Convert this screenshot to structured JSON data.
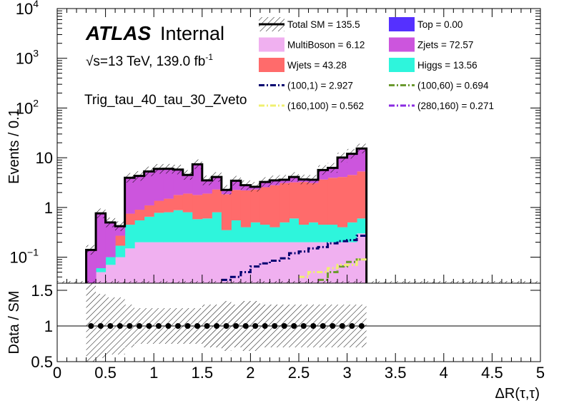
{
  "chart_data": {
    "type": "bar",
    "title": "",
    "atlas_label": "ATLAS",
    "atlas_status": "Internal",
    "lumi_label": "√s=13 TeV, 139.0 fb",
    "lumi_sup": "-1",
    "region_label": "Trig_tau_40_tau_30_Zveto",
    "xlabel": "ΔR(τ,τ)",
    "ylabel_top": "Events / 0.1",
    "ylabel_bottom": "Data / SM",
    "xlim": [
      0,
      5
    ],
    "ylim_top": [
      0.03,
      10000
    ],
    "ylim_bottom": [
      0.5,
      1.6
    ],
    "x_tick_labels": [
      "0",
      "0.5",
      "1",
      "1.5",
      "2",
      "2.5",
      "3",
      "3.5",
      "4",
      "4.5",
      "5"
    ],
    "x_tick_values": [
      0,
      0.5,
      1,
      1.5,
      2,
      2.5,
      3,
      3.5,
      4,
      4.5,
      5
    ],
    "y_top_tick_values": [
      0.1,
      1,
      10,
      100,
      1000,
      10000
    ],
    "y_top_tick_labels": [
      "10",
      "1",
      "10",
      "10",
      "10",
      "10"
    ],
    "y_top_tick_sups": [
      "−1",
      "",
      "",
      "2",
      "3",
      "4"
    ],
    "y_bottom_tick_values": [
      0.5,
      1,
      1.5
    ],
    "y_bottom_tick_labels": [
      "0.5",
      "1",
      "1.5"
    ],
    "bin_edges": [
      0.3,
      0.4,
      0.5,
      0.6,
      0.7,
      0.8,
      0.9,
      1.0,
      1.1,
      1.2,
      1.3,
      1.4,
      1.5,
      1.6,
      1.7,
      1.8,
      1.9,
      2.0,
      2.1,
      2.2,
      2.3,
      2.4,
      2.5,
      2.6,
      2.7,
      2.8,
      2.9,
      3.0,
      3.1,
      3.2
    ],
    "stacked_series": [
      {
        "name": "MultiBoson",
        "color": "#f0b0f0",
        "values": [
          0.02,
          0.05,
          0.07,
          0.1,
          0.15,
          0.2,
          0.2,
          0.2,
          0.2,
          0.2,
          0.2,
          0.2,
          0.2,
          0.2,
          0.2,
          0.2,
          0.2,
          0.2,
          0.2,
          0.2,
          0.2,
          0.2,
          0.2,
          0.2,
          0.2,
          0.2,
          0.2,
          0.2,
          0.3
        ]
      },
      {
        "name": "Higgs",
        "color": "#2ef5dc",
        "values": [
          0.0,
          0.01,
          0.03,
          0.07,
          0.3,
          0.35,
          0.45,
          0.58,
          0.6,
          0.68,
          0.6,
          0.38,
          0.4,
          0.6,
          0.15,
          0.35,
          0.2,
          0.3,
          0.25,
          0.2,
          0.3,
          0.4,
          0.25,
          0.3,
          0.25,
          0.25,
          0.2,
          0.3,
          0.3
        ]
      },
      {
        "name": "Wjets",
        "color": "#ff6b6b",
        "values": [
          0.0,
          0.0,
          0.0,
          0.1,
          0.3,
          0.35,
          0.45,
          0.58,
          0.7,
          0.9,
          1.1,
          1.2,
          1.3,
          1.5,
          1.5,
          1.7,
          1.8,
          1.8,
          2.1,
          2.4,
          2.6,
          2.6,
          2.8,
          2.6,
          3.2,
          3.5,
          3.7,
          4.0,
          4.7
        ]
      },
      {
        "name": "Zjets",
        "color": "#cc55dd",
        "values": [
          0.12,
          0.7,
          0.4,
          0.15,
          3.2,
          3.4,
          4.2,
          4.6,
          4.5,
          4.0,
          2.6,
          5.6,
          1.6,
          1.8,
          0.4,
          1.2,
          0.6,
          0.3,
          0.7,
          0.7,
          0.5,
          0.9,
          0.4,
          0.5,
          2.0,
          2.3,
          6.0,
          7.5,
          10.0
        ]
      },
      {
        "name": "Top",
        "color": "#5530ff",
        "values": [
          0,
          0,
          0,
          0,
          0,
          0,
          0,
          0,
          0,
          0,
          0,
          0,
          0,
          0,
          0,
          0,
          0,
          0,
          0,
          0,
          0,
          0,
          0,
          0,
          0,
          0,
          0,
          0,
          0
        ]
      }
    ],
    "signal_series": [
      {
        "name": "(100,1)",
        "color": "#000070",
        "values": [
          0,
          0,
          0,
          0,
          0,
          0,
          0,
          0,
          0,
          0,
          0,
          0,
          0,
          0,
          0.035,
          0.04,
          0.05,
          0.065,
          0.075,
          0.085,
          0.095,
          0.12,
          0.13,
          0.15,
          0.16,
          0.19,
          0.21,
          0.22,
          0.27
        ]
      },
      {
        "name": "(100,60)",
        "color": "#6b9a2e",
        "values": [
          0,
          0,
          0,
          0,
          0,
          0,
          0,
          0,
          0,
          0,
          0,
          0,
          0,
          0,
          0,
          0,
          0,
          0,
          0,
          0,
          0,
          0,
          0,
          0,
          0.035,
          0.05,
          0.065,
          0.08,
          0.09
        ]
      },
      {
        "name": "(160,100)",
        "color": "#f0f070",
        "values": [
          0,
          0,
          0,
          0,
          0,
          0,
          0,
          0,
          0,
          0,
          0,
          0,
          0,
          0,
          0,
          0,
          0,
          0,
          0,
          0,
          0,
          0,
          0.04,
          0.05,
          0.05,
          0.06,
          0.07,
          0.07,
          0.09
        ]
      },
      {
        "name": "(280,160)",
        "color": "#8a2be2",
        "values": [
          0,
          0,
          0,
          0,
          0,
          0,
          0,
          0,
          0,
          0,
          0,
          0,
          0,
          0,
          0,
          0,
          0,
          0,
          0,
          0,
          0,
          0,
          0,
          0,
          0,
          0,
          0,
          0,
          0
        ]
      }
    ],
    "ratio_points_x": [
      0.35,
      0.45,
      0.55,
      0.65,
      0.75,
      0.85,
      0.95,
      1.05,
      1.15,
      1.25,
      1.35,
      1.45,
      1.55,
      1.65,
      1.75,
      1.85,
      1.95,
      2.05,
      2.15,
      2.25,
      2.35,
      2.45,
      2.55,
      2.65,
      2.75,
      2.85,
      2.95,
      3.05,
      3.15
    ],
    "ratio_points_y": [
      1,
      1,
      1,
      1,
      1,
      1,
      1,
      1,
      1,
      1,
      1,
      1,
      1,
      1,
      1,
      1,
      1,
      1,
      1,
      1,
      1,
      1,
      1,
      1,
      1,
      1,
      1,
      1,
      1
    ],
    "ratio_band_half_widths": [
      0.6,
      0.45,
      0.4,
      0.4,
      0.3,
      0.25,
      0.25,
      0.25,
      0.25,
      0.25,
      0.25,
      0.25,
      0.3,
      0.3,
      0.35,
      0.3,
      0.35,
      0.35,
      0.3,
      0.3,
      0.3,
      0.3,
      0.3,
      0.3,
      0.3,
      0.3,
      0.3,
      0.3,
      0.3
    ],
    "legend": [
      {
        "label": "Total SM = 135.5",
        "type": "total",
        "color": "#000000"
      },
      {
        "label": "Top = 0.00",
        "type": "fill",
        "color": "#5530ff"
      },
      {
        "label": "MultiBoson = 6.12",
        "type": "fill",
        "color": "#f0b0f0"
      },
      {
        "label": "Zjets = 72.57",
        "type": "fill",
        "color": "#cc55dd"
      },
      {
        "label": "Wjets = 43.28",
        "type": "fill",
        "color": "#ff6b6b"
      },
      {
        "label": "Higgs = 13.56",
        "type": "fill",
        "color": "#2ef5dc"
      },
      {
        "label": "(100,1) = 2.927",
        "type": "dash",
        "color": "#000070"
      },
      {
        "label": "(100,60) = 0.694",
        "type": "dash",
        "color": "#6b9a2e"
      },
      {
        "label": "(160,100) = 0.562",
        "type": "dash",
        "color": "#f0f070"
      },
      {
        "label": "(280,160) = 0.271",
        "type": "dash",
        "color": "#8a2be2"
      }
    ]
  }
}
